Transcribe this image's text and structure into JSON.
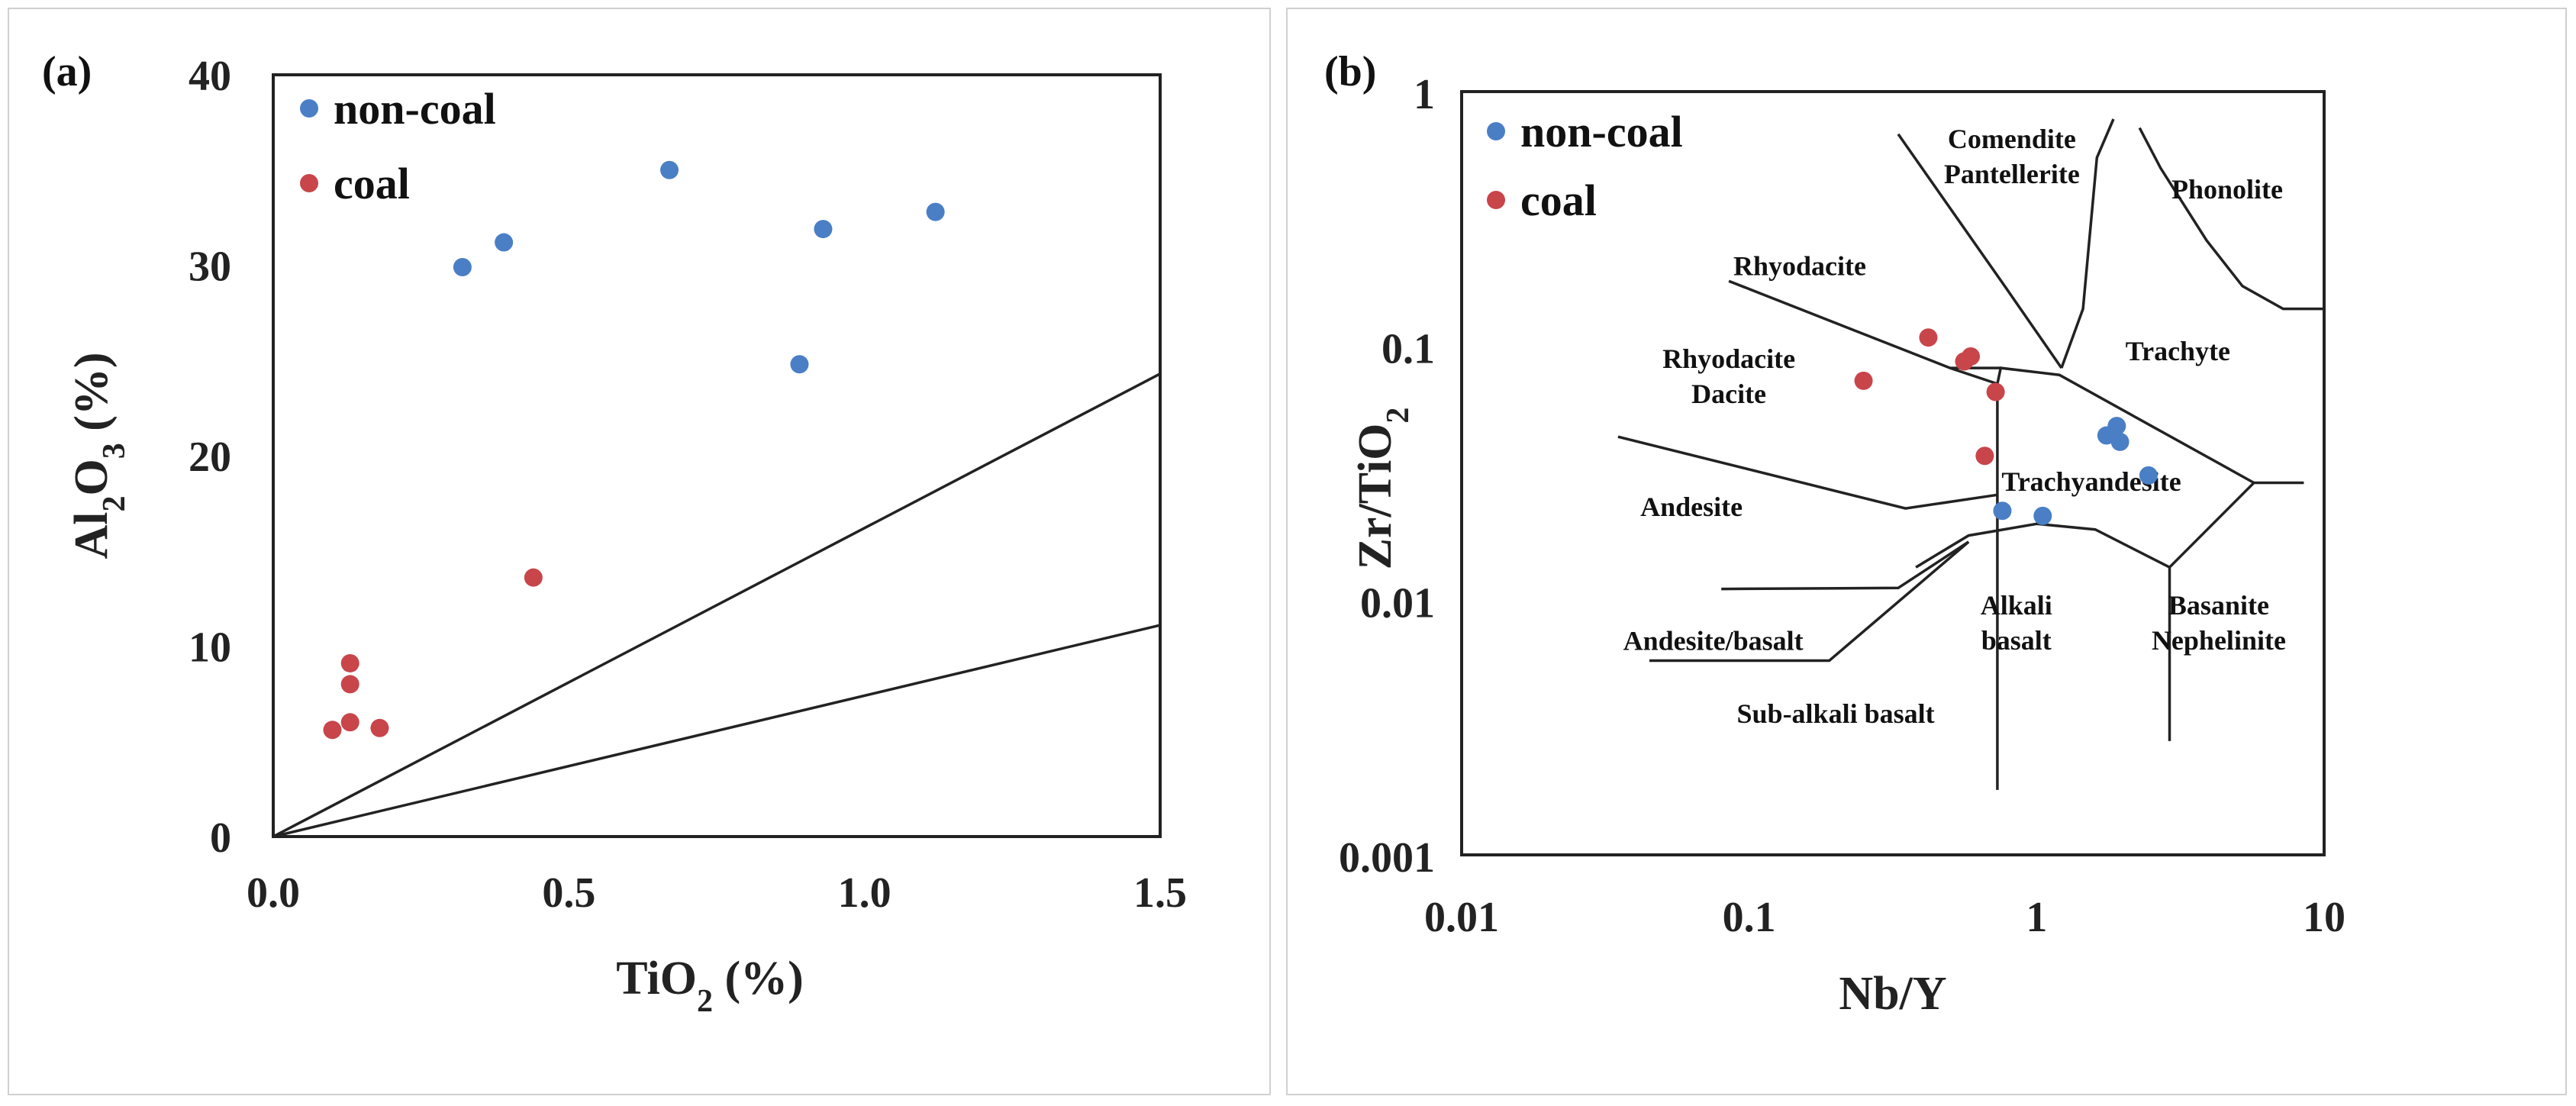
{
  "colors": {
    "non_coal": "#4a7fc6",
    "coal": "#c8454a",
    "axis": "#222222"
  },
  "chart_data": [
    {
      "type": "scatter",
      "panel_label": "(a)",
      "xlabel": "TiO2 (%)",
      "ylabel": "Al2O3 (%)",
      "xlim": [
        0.0,
        1.5
      ],
      "ylim": [
        0,
        40
      ],
      "x_ticks": [
        "0.0",
        "0.5",
        "1.0",
        "1.5"
      ],
      "x_tick_values": [
        0.0,
        0.5,
        1.0,
        1.5
      ],
      "y_ticks": [
        "0",
        "10",
        "20",
        "30",
        "40"
      ],
      "y_tick_values": [
        0,
        10,
        20,
        30,
        40
      ],
      "legend": [
        "non-coal",
        "coal"
      ],
      "series": [
        {
          "name": "non-coal",
          "color": "#4a7fc6",
          "points": [
            [
              0.32,
              29.9
            ],
            [
              0.39,
              31.2
            ],
            [
              0.67,
              35.0
            ],
            [
              0.89,
              24.8
            ],
            [
              0.93,
              31.9
            ],
            [
              1.12,
              32.8
            ]
          ]
        },
        {
          "name": "coal",
          "color": "#c8454a",
          "points": [
            [
              0.44,
              13.6
            ],
            [
              0.13,
              9.1
            ],
            [
              0.13,
              8.0
            ],
            [
              0.13,
              6.0
            ],
            [
              0.1,
              5.6
            ],
            [
              0.18,
              5.7
            ]
          ]
        }
      ],
      "reference_lines": [
        {
          "from": [
            0.0,
            0.0
          ],
          "to": [
            1.5,
            24.3
          ]
        },
        {
          "from": [
            0.0,
            0.0
          ],
          "to": [
            1.5,
            11.1
          ]
        }
      ]
    },
    {
      "type": "scatter",
      "panel_label": "(b)",
      "xlabel": "Nb/Y",
      "ylabel": "Zr/TiO2",
      "x_scale": "log",
      "y_scale": "log",
      "xlim": [
        0.01,
        10
      ],
      "ylim": [
        0.001,
        1
      ],
      "x_ticks": [
        "0.01",
        "0.1",
        "1",
        "10"
      ],
      "x_tick_values": [
        0.01,
        0.1,
        1,
        10
      ],
      "y_ticks": [
        "0.001",
        "0.01",
        "0.1",
        "1"
      ],
      "y_tick_values": [
        0.001,
        0.01,
        0.1,
        1
      ],
      "legend": [
        "non-coal",
        "coal"
      ],
      "series": [
        {
          "name": "non-coal",
          "color": "#4a7fc6",
          "points": [
            [
              1.75,
              0.0445
            ],
            [
              1.9,
              0.0485
            ],
            [
              1.95,
              0.042
            ],
            [
              2.45,
              0.031
            ],
            [
              0.76,
              0.0225
            ],
            [
              1.05,
              0.0215
            ]
          ]
        },
        {
          "name": "coal",
          "color": "#c8454a",
          "points": [
            [
              0.42,
              0.108
            ],
            [
              0.56,
              0.087
            ],
            [
              0.59,
              0.091
            ],
            [
              0.25,
              0.073
            ],
            [
              0.72,
              0.066
            ],
            [
              0.66,
              0.037
            ]
          ]
        }
      ],
      "field_labels": [
        {
          "lines": [
            "Comendite",
            "Pantellerite"
          ],
          "x": 0.82,
          "y": 0.6
        },
        {
          "lines": [
            "Phonolite"
          ],
          "x": 4.6,
          "y": 0.38
        },
        {
          "lines": [
            "Rhyodacite"
          ],
          "x": 0.15,
          "y": 0.19
        },
        {
          "lines": [
            "Rhyodacite",
            "Dacite"
          ],
          "x": 0.085,
          "y": 0.082
        },
        {
          "lines": [
            "Trachyte"
          ],
          "x": 3.1,
          "y": 0.088
        },
        {
          "lines": [
            "Trachyandesite"
          ],
          "x": 1.55,
          "y": 0.027
        },
        {
          "lines": [
            "Andesite"
          ],
          "x": 0.063,
          "y": 0.0215
        },
        {
          "lines": [
            "Alkali",
            "basalt"
          ],
          "x": 0.85,
          "y": 0.0088
        },
        {
          "lines": [
            "Basanite",
            "Nephelinite"
          ],
          "x": 4.3,
          "y": 0.0088
        },
        {
          "lines": [
            "Andesite/basalt"
          ],
          "x": 0.075,
          "y": 0.0064
        },
        {
          "lines": [
            "Sub-alkali basalt"
          ],
          "x": 0.2,
          "y": 0.0033
        }
      ],
      "field_boundaries": [
        [
          [
            0.085,
            0.18
          ],
          [
            0.5,
            0.082
          ],
          [
            0.73,
            0.071
          ]
        ],
        [
          [
            0.73,
            0.071
          ],
          [
            0.73,
            0.0018
          ]
        ],
        [
          [
            0.73,
            0.071
          ],
          [
            0.75,
            0.082
          ],
          [
            1.2,
            0.077
          ],
          [
            5.7,
            0.029
          ]
        ],
        [
          [
            0.035,
            0.044
          ],
          [
            0.35,
            0.023
          ],
          [
            0.73,
            0.026
          ]
        ],
        [
          [
            0.5,
            0.082
          ],
          [
            0.75,
            0.082
          ]
        ],
        [
          [
            0.33,
            0.68
          ],
          [
            0.78,
            0.17
          ],
          [
            1.22,
            0.082
          ]
        ],
        [
          [
            1.22,
            0.082
          ],
          [
            1.45,
            0.14
          ],
          [
            1.62,
            0.55
          ],
          [
            1.85,
            0.78
          ]
        ],
        [
          [
            2.28,
            0.72
          ],
          [
            2.7,
            0.5
          ],
          [
            3.9,
            0.26
          ],
          [
            5.2,
            0.172
          ],
          [
            7.2,
            0.14
          ],
          [
            9.9,
            0.14
          ]
        ],
        [
          [
            5.7,
            0.029
          ],
          [
            8.5,
            0.029
          ]
        ],
        [
          [
            5.7,
            0.029
          ],
          [
            2.9,
            0.0135
          ],
          [
            2.9,
            0.0028
          ]
        ],
        [
          [
            0.38,
            0.0135
          ],
          [
            0.58,
            0.018
          ],
          [
            1.0,
            0.02
          ],
          [
            1.6,
            0.019
          ],
          [
            2.9,
            0.0135
          ]
        ],
        [
          [
            0.08,
            0.0111
          ],
          [
            0.33,
            0.0112
          ],
          [
            0.58,
            0.017
          ]
        ],
        [
          [
            0.045,
            0.0058
          ],
          [
            0.19,
            0.0058
          ],
          [
            0.58,
            0.017
          ]
        ]
      ]
    }
  ]
}
